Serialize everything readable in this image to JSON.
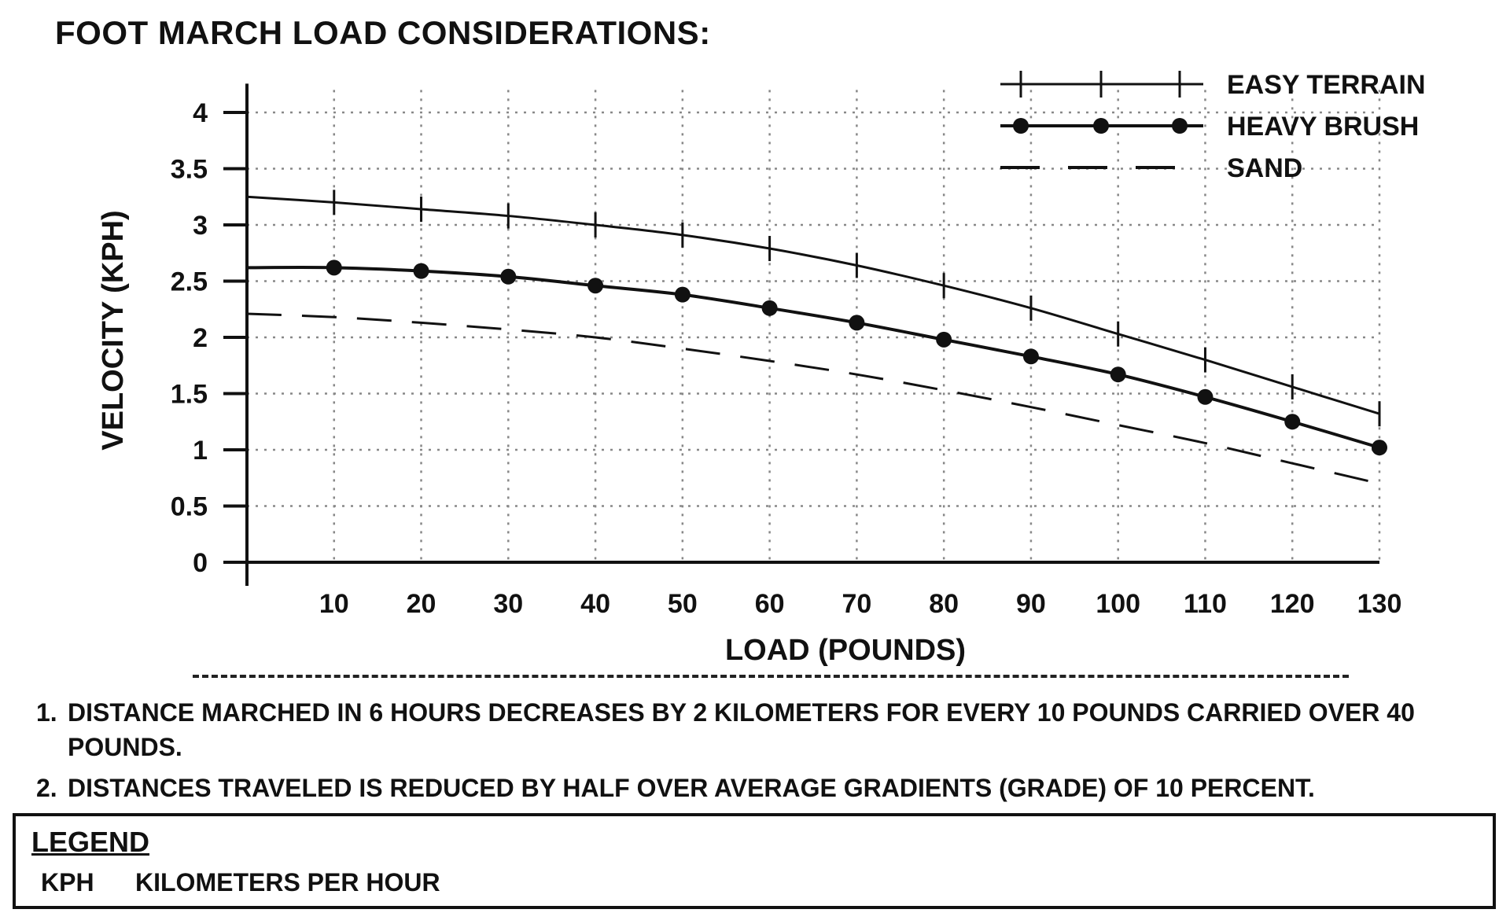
{
  "page": {
    "title": "FOOT MARCH LOAD CONSIDERATIONS:",
    "notes": [
      {
        "number": "1.",
        "text": "DISTANCE MARCHED IN 6 HOURS DECREASES BY 2 KILOMETERS FOR EVERY 10 POUNDS CARRIED OVER 40 POUNDS."
      },
      {
        "number": "2.",
        "text": "DISTANCES TRAVELED IS REDUCED BY HALF OVER AVERAGE GRADIENTS (GRADE) OF 10 PERCENT."
      }
    ],
    "legend_box": {
      "title": "LEGEND",
      "abbreviation": "KPH",
      "meaning": "KILOMETERS PER HOUR"
    }
  },
  "chart_data": {
    "type": "line",
    "title": "FOOT MARCH LOAD CONSIDERATIONS:",
    "xlabel": "LOAD (POUNDS)",
    "ylabel": "VELOCITY (KPH)",
    "xlim": [
      0,
      130
    ],
    "ylim": [
      0,
      4.2
    ],
    "x_ticks": [
      10,
      20,
      30,
      40,
      50,
      60,
      70,
      80,
      90,
      100,
      110,
      120,
      130
    ],
    "x_tick_labels": [
      "10",
      "20",
      "30",
      "40",
      "50",
      "60",
      "70",
      "80",
      "90",
      "100",
      "110",
      "120",
      "130"
    ],
    "y_ticks": [
      0,
      0.5,
      1,
      1.5,
      2,
      2.5,
      3,
      3.5,
      4
    ],
    "y_tick_labels": [
      "0",
      "0.5",
      "1",
      "1.5",
      "2",
      "2.5",
      "3",
      "3.5",
      "4"
    ],
    "grid": true,
    "legend_position": "top-right",
    "series": [
      {
        "name": "EASY TERRAIN",
        "marker": "tick",
        "line_style": "solid",
        "color": "#111111",
        "x": [
          0,
          10,
          20,
          30,
          40,
          50,
          60,
          70,
          80,
          90,
          100,
          110,
          120,
          130
        ],
        "values": [
          3.25,
          3.2,
          3.14,
          3.08,
          3.0,
          2.91,
          2.79,
          2.64,
          2.46,
          2.26,
          2.03,
          1.8,
          1.56,
          1.32
        ]
      },
      {
        "name": "HEAVY BRUSH",
        "marker": "dot",
        "line_style": "solid",
        "color": "#111111",
        "x": [
          0,
          10,
          20,
          30,
          40,
          50,
          60,
          70,
          80,
          90,
          100,
          110,
          120,
          130
        ],
        "values": [
          2.62,
          2.62,
          2.59,
          2.54,
          2.46,
          2.38,
          2.26,
          2.13,
          1.98,
          1.83,
          1.67,
          1.47,
          1.25,
          1.02
        ]
      },
      {
        "name": "SAND",
        "marker": "none",
        "line_style": "dashed",
        "color": "#111111",
        "x": [
          0,
          10,
          20,
          30,
          40,
          50,
          60,
          70,
          80,
          90,
          100,
          110,
          120,
          130
        ],
        "values": [
          2.21,
          2.18,
          2.13,
          2.07,
          2.0,
          1.9,
          1.79,
          1.67,
          1.53,
          1.38,
          1.22,
          1.06,
          0.88,
          0.7
        ]
      }
    ]
  }
}
